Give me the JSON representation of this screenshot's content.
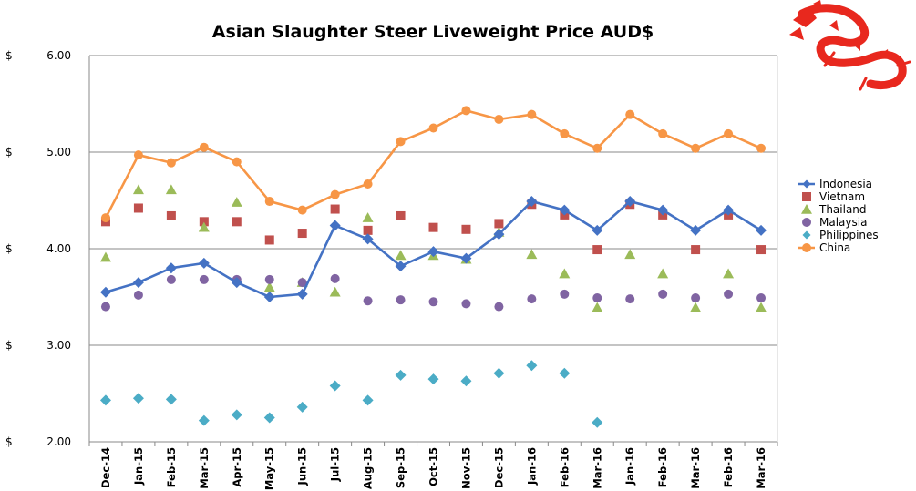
{
  "chart_data": {
    "type": "line",
    "title": "Asian Slaughter Steer Liveweight Price AUD$",
    "currency_symbol": "$",
    "ylim": [
      2.0,
      6.0
    ],
    "y_ticks": [
      "2.00",
      "3.00",
      "4.00",
      "5.00",
      "6.00"
    ],
    "grid": true,
    "legend_position": "right",
    "categories": [
      "Dec-14",
      "Jan-15",
      "Feb-15",
      "Mar-15",
      "Apr-15",
      "May-15",
      "Jun-15",
      "Jul-15",
      "Aug-15",
      "Sep-15",
      "Oct-15",
      "Nov-15",
      "Dec-15",
      "Jan-16",
      "Feb-16",
      "Mar-16",
      "Jan-16",
      "Feb-16",
      "Mar-16",
      "Feb-16",
      "Mar-16"
    ],
    "series": [
      {
        "name": "Indonesia",
        "style": "line",
        "marker": "diamond",
        "color": "#4472c4",
        "values": [
          3.55,
          3.65,
          3.8,
          3.85,
          3.65,
          3.5,
          3.53,
          4.24,
          4.1,
          3.82,
          3.97,
          3.9,
          4.15,
          4.49,
          4.4,
          4.19,
          4.49,
          4.4,
          4.19,
          4.4,
          4.19
        ]
      },
      {
        "name": "Vietnam",
        "style": "markers",
        "marker": "square",
        "color": "#c0504d",
        "values": [
          4.28,
          4.42,
          4.34,
          4.28,
          4.28,
          4.09,
          4.16,
          4.41,
          4.19,
          4.34,
          4.22,
          4.2,
          4.26,
          4.46,
          4.35,
          3.99,
          4.46,
          4.35,
          3.99,
          4.35,
          3.99
        ]
      },
      {
        "name": "Thailand",
        "style": "markers",
        "marker": "triangle",
        "color": "#9bbb59",
        "values": [
          3.91,
          4.61,
          4.61,
          4.22,
          4.48,
          3.6,
          3.65,
          3.55,
          4.32,
          3.93,
          3.93,
          3.89,
          4.17,
          3.94,
          3.74,
          3.39,
          3.94,
          3.74,
          3.39,
          3.74,
          3.39
        ]
      },
      {
        "name": "Malaysia",
        "style": "markers",
        "marker": "circle",
        "color": "#8064a2",
        "values": [
          3.4,
          3.52,
          3.68,
          3.68,
          3.68,
          3.68,
          3.65,
          3.69,
          3.46,
          3.47,
          3.45,
          3.43,
          3.4,
          3.48,
          3.53,
          3.49,
          3.48,
          3.53,
          3.49,
          3.53,
          3.49
        ]
      },
      {
        "name": "Philippines",
        "style": "markers",
        "marker": "diamond",
        "color": "#4bacc6",
        "values": [
          2.43,
          2.45,
          2.44,
          2.22,
          2.28,
          2.25,
          2.36,
          2.58,
          2.43,
          2.69,
          2.65,
          2.63,
          2.71,
          2.79,
          2.71,
          2.2,
          null,
          null,
          null,
          null,
          null
        ]
      },
      {
        "name": "China",
        "style": "line",
        "marker": "circle",
        "color": "#f79646",
        "values": [
          4.32,
          4.97,
          4.89,
          5.05,
          4.9,
          4.49,
          4.4,
          4.56,
          4.67,
          5.11,
          5.25,
          5.43,
          5.34,
          5.39,
          5.19,
          5.04,
          5.39,
          5.19,
          5.04,
          5.19,
          5.04
        ]
      }
    ]
  },
  "logo": {
    "name": "red-dragon-logo",
    "color": "#e8281e"
  }
}
